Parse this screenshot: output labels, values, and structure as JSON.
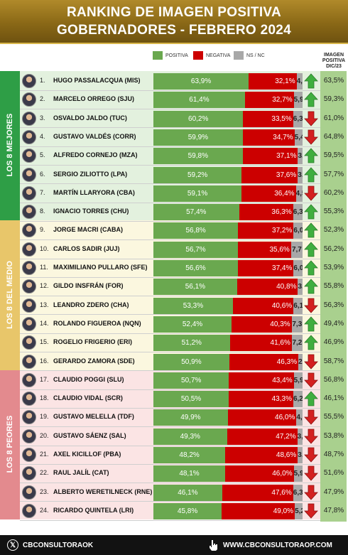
{
  "header": {
    "line1": "RANKING DE IMAGEN POSITIVA",
    "line2": "GOBERNADORES - FEBRERO 2024"
  },
  "legend": {
    "positiva": "POSITIVA",
    "negativa": "NEGATIVA",
    "ns_nc": "NS / NC"
  },
  "prev_header": [
    "IMAGEN",
    "POSITIVA",
    "DIC/23"
  ],
  "groups": [
    {
      "label": "LOS 8 MEJORES",
      "color": "#2e9e46",
      "band": "#e3f1de"
    },
    {
      "label": "LOS 8 DEL MEDIO",
      "color": "#e8c66a",
      "band": "#fbf7df"
    },
    {
      "label": "LOS 8 PEORES",
      "color": "#e38a8e",
      "band": "#fbe4e4"
    }
  ],
  "colors": {
    "positiva": "#6aa84f",
    "negativa": "#cc0000",
    "ns_nc": "#a8a8a8",
    "arrow_up": "#3fae3f",
    "arrow_down": "#d32020",
    "prev_col": "#a9d08e"
  },
  "chart_data": {
    "type": "bar",
    "title": "RANKING DE IMAGEN POSITIVA GOBERNADORES - FEBRERO 2024",
    "rows": [
      {
        "rank": "1.",
        "name": "HUGO PASSALACQUA (MIS)",
        "pos": 63.9,
        "neg": 32.1,
        "ns": 4.0,
        "pos_label": "63,9%",
        "neg_label": "32,1%",
        "ns_label": "4,0",
        "trend": "up",
        "prev": "63,5%"
      },
      {
        "rank": "2.",
        "name": "MARCELO ORREGO (SJU)",
        "pos": 61.4,
        "neg": 32.7,
        "ns": 5.9,
        "pos_label": "61,4%",
        "neg_label": "32,7%",
        "ns_label": "5,9",
        "trend": "up",
        "prev": "59,3%"
      },
      {
        "rank": "3.",
        "name": "OSVALDO JALDO (TUC)",
        "pos": 60.2,
        "neg": 33.5,
        "ns": 6.3,
        "pos_label": "60,2%",
        "neg_label": "33,5%",
        "ns_label": "6,3",
        "trend": "down",
        "prev": "61,0%"
      },
      {
        "rank": "4.",
        "name": "GUSTAVO VALDÉS (CORR)",
        "pos": 59.9,
        "neg": 34.7,
        "ns": 5.4,
        "pos_label": "59,9%",
        "neg_label": "34,7%",
        "ns_label": "5,4",
        "trend": "down",
        "prev": "64,8%"
      },
      {
        "rank": "5.",
        "name": "ALFREDO CORNEJO (MZA)",
        "pos": 59.8,
        "neg": 37.1,
        "ns": 3.1,
        "pos_label": "59,8%",
        "neg_label": "37,1%",
        "ns_label": "3,1",
        "trend": "up",
        "prev": "59,5%"
      },
      {
        "rank": "6.",
        "name": "SERGIO ZILIOTTO (LPA)",
        "pos": 59.2,
        "neg": 37.6,
        "ns": 3.2,
        "pos_label": "59,2%",
        "neg_label": "37,6%",
        "ns_label": "3,2",
        "trend": "up",
        "prev": "57,7%"
      },
      {
        "rank": "7.",
        "name": "MARTÍN LLARYORA (CBA)",
        "pos": 59.1,
        "neg": 36.4,
        "ns": 4.5,
        "pos_label": "59,1%",
        "neg_label": "36,4%",
        "ns_label": "4,5",
        "trend": "down",
        "prev": "60,2%"
      },
      {
        "rank": "8.",
        "name": "IGNACIO TORRES (CHU)",
        "pos": 57.4,
        "neg": 36.3,
        "ns": 6.3,
        "pos_label": "57,4%",
        "neg_label": "36,3%",
        "ns_label": "6,3",
        "trend": "up",
        "prev": "55,3%"
      },
      {
        "rank": "9.",
        "name": "JORGE MACRI (CABA)",
        "pos": 56.8,
        "neg": 37.2,
        "ns": 6.0,
        "pos_label": "56,8%",
        "neg_label": "37,2%",
        "ns_label": "6,0",
        "trend": "up",
        "prev": "52,3%"
      },
      {
        "rank": "10.",
        "name": "CARLOS SADIR (JUJ)",
        "pos": 56.7,
        "neg": 35.6,
        "ns": 7.7,
        "pos_label": "56,7%",
        "neg_label": "35,6%",
        "ns_label": "7,7",
        "trend": "up",
        "prev": "56,2%"
      },
      {
        "rank": "11.",
        "name": "MAXIMILIANO PULLARO (SFE)",
        "pos": 56.6,
        "neg": 37.4,
        "ns": 6.0,
        "pos_label": "56,6%",
        "neg_label": "37,4%",
        "ns_label": "6,0",
        "trend": "up",
        "prev": "53,9%"
      },
      {
        "rank": "12.",
        "name": "GILDO INSFRÁN (FOR)",
        "pos": 56.1,
        "neg": 40.8,
        "ns": 3.1,
        "pos_label": "56,1%",
        "neg_label": "40,8%",
        "ns_label": "3,1",
        "trend": "up",
        "prev": "55,8%"
      },
      {
        "rank": "13.",
        "name": "LEANDRO ZDERO (CHA)",
        "pos": 53.3,
        "neg": 40.6,
        "ns": 6.1,
        "pos_label": "53,3%",
        "neg_label": "40,6%",
        "ns_label": "6,1",
        "trend": "down",
        "prev": "56,3%"
      },
      {
        "rank": "14.",
        "name": "ROLANDO FIGUEROA (NQN)",
        "pos": 52.4,
        "neg": 40.3,
        "ns": 7.3,
        "pos_label": "52,4%",
        "neg_label": "40,3%",
        "ns_label": "7,3",
        "trend": "up",
        "prev": "49,4%"
      },
      {
        "rank": "15.",
        "name": "ROGELIO FRIGERIO (ERI)",
        "pos": 51.2,
        "neg": 41.6,
        "ns": 7.2,
        "pos_label": "51,2%",
        "neg_label": "41,6%",
        "ns_label": "7,2",
        "trend": "up",
        "prev": "46,9%"
      },
      {
        "rank": "16.",
        "name": "GERARDO ZAMORA (SDE)",
        "pos": 50.9,
        "neg": 46.3,
        "ns": 2.8,
        "pos_label": "50,9%",
        "neg_label": "46,3%",
        "ns_label": "2,8",
        "trend": "down",
        "prev": "58,7%"
      },
      {
        "rank": "17.",
        "name": "CLAUDIO POGGI (SLU)",
        "pos": 50.7,
        "neg": 43.4,
        "ns": 5.9,
        "pos_label": "50,7%",
        "neg_label": "43,4%",
        "ns_label": "5,9",
        "trend": "down",
        "prev": "56,8%"
      },
      {
        "rank": "18.",
        "name": "CLAUDIO VIDAL (SCR)",
        "pos": 50.5,
        "neg": 43.3,
        "ns": 6.2,
        "pos_label": "50,5%",
        "neg_label": "43,3%",
        "ns_label": "6,2",
        "trend": "up",
        "prev": "46,1%"
      },
      {
        "rank": "19.",
        "name": "GUSTAVO MELELLA (TDF)",
        "pos": 49.9,
        "neg": 46.0,
        "ns": 4.1,
        "pos_label": "49,9%",
        "neg_label": "46,0%",
        "ns_label": "4,1",
        "trend": "down",
        "prev": "55,5%"
      },
      {
        "rank": "20.",
        "name": "GUSTAVO SÁENZ (SAL)",
        "pos": 49.3,
        "neg": 47.2,
        "ns": 3.5,
        "pos_label": "49,3%",
        "neg_label": "47,2%",
        "ns_label": "3,5",
        "trend": "down",
        "prev": "53,8%"
      },
      {
        "rank": "21.",
        "name": "AXEL KICILLOF (PBA)",
        "pos": 48.2,
        "neg": 48.6,
        "ns": 3.2,
        "pos_label": "48,2%",
        "neg_label": "48,6%",
        "ns_label": "3,2",
        "trend": "down",
        "prev": "48,7%"
      },
      {
        "rank": "22.",
        "name": "RAUL JALÍL (CAT)",
        "pos": 48.1,
        "neg": 46.0,
        "ns": 5.9,
        "pos_label": "48,1%",
        "neg_label": "46,0%",
        "ns_label": "5,9",
        "trend": "down",
        "prev": "51,6%"
      },
      {
        "rank": "23.",
        "name": "ALBERTO WERETILNECK (RNE)",
        "pos": 46.1,
        "neg": 47.6,
        "ns": 6.3,
        "pos_label": "46,1%",
        "neg_label": "47,6%",
        "ns_label": "6,3",
        "trend": "down",
        "prev": "47,9%"
      },
      {
        "rank": "24.",
        "name": "RICARDO QUINTELA (LRI)",
        "pos": 45.8,
        "neg": 49.0,
        "ns": 5.2,
        "pos_label": "45,8%",
        "neg_label": "49,0%",
        "ns_label": "5,2",
        "trend": "down",
        "prev": "47,8%"
      }
    ]
  },
  "footer": {
    "left_handle": "CBCONSULTORAOK",
    "right_url": "WWW.CBCONSULTORAOP.COM"
  }
}
